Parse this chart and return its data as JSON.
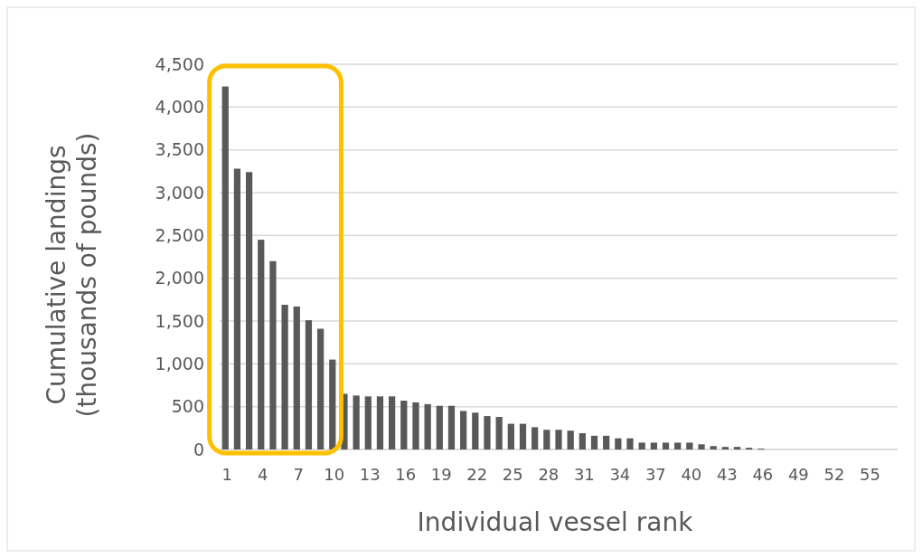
{
  "chart_data": {
    "type": "bar",
    "xlabel": "Individual vessel rank",
    "ylabel": "Cumulative landings (thousands of pounds)",
    "categories": [
      "1",
      null,
      null,
      "4",
      null,
      null,
      "7",
      null,
      null,
      "10",
      null,
      null,
      "13",
      null,
      null,
      "16",
      null,
      null,
      "19",
      null,
      null,
      "22",
      null,
      null,
      "25",
      null,
      null,
      "28",
      null,
      null,
      "31",
      null,
      null,
      "34",
      null,
      null,
      "37",
      null,
      null,
      "40",
      null,
      null,
      "43",
      null,
      null,
      "46",
      null,
      null,
      "49",
      null,
      null,
      "52",
      null,
      null,
      "55",
      null,
      null
    ],
    "values": [
      4240,
      3280,
      3240,
      2450,
      2200,
      1690,
      1670,
      1510,
      1410,
      1050,
      650,
      630,
      620,
      620,
      620,
      570,
      550,
      530,
      510,
      510,
      450,
      430,
      390,
      380,
      300,
      300,
      260,
      230,
      230,
      220,
      190,
      160,
      160,
      130,
      130,
      80,
      80,
      80,
      80,
      80,
      60,
      40,
      30,
      30,
      20,
      10,
      0,
      0,
      0,
      0,
      0,
      0,
      0,
      0,
      0,
      0,
      0
    ],
    "color": "#595959",
    "ylim": [
      0,
      4500
    ],
    "yticks": [
      0,
      {
        "value": 500,
        "label": "500"
      },
      {
        "value": 1000,
        "label": "1,000"
      },
      {
        "value": 1500,
        "label": "1,500"
      },
      {
        "value": 2000,
        "label": "2,000"
      },
      {
        "value": 2500,
        "label": "2,500"
      },
      {
        "value": 3000,
        "label": "3,000"
      },
      {
        "value": 3500,
        "label": "3,500"
      },
      {
        "value": 4000,
        "label": "4,000"
      },
      {
        "value": 4500,
        "label": "4,500"
      }
    ],
    "grid": "y"
  }
}
